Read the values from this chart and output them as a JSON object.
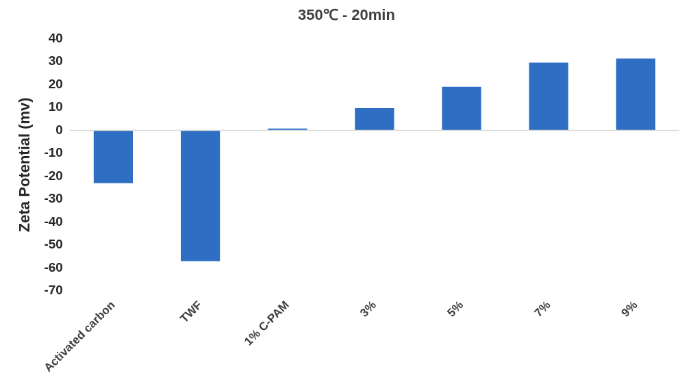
{
  "chart_data": {
    "type": "bar",
    "title": "350℃ - 20min",
    "ylabel": "Zeta Potential (mv)",
    "categories": [
      "Activated carbon",
      "TWF",
      "1% C-PAM",
      "3%",
      "5%",
      "7%",
      "9%"
    ],
    "values": [
      -23,
      -57,
      0.8,
      9.7,
      19,
      29.5,
      31.3
    ],
    "color": "#2e6fc4",
    "ylim": [
      -70,
      40
    ],
    "yticks": [
      -70,
      -60,
      -50,
      -40,
      -30,
      -20,
      -10,
      0,
      10,
      20,
      30,
      40
    ],
    "grid": false,
    "ref_lines": [
      {
        "axis": "y",
        "value": 0,
        "color": "#d9d9d9"
      }
    ]
  }
}
